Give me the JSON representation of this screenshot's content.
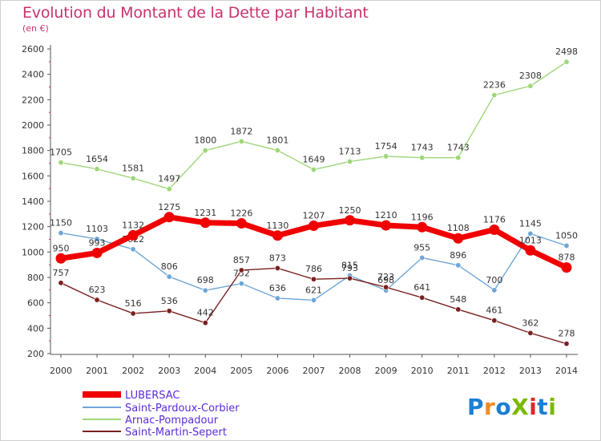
{
  "title": "Evolution du Montant de la Dette par Habitant",
  "unit": "(en €)",
  "logo": {
    "text": "ProXiti",
    "colors": [
      "#1a7fd4",
      "#f28a1e",
      "#1a7fd4",
      "#7ab800",
      "#d82a2a",
      "#1a7fd4",
      "#7ab800"
    ]
  },
  "chart_data": {
    "type": "line",
    "x": [
      "2000",
      "2001",
      "2002",
      "2003",
      "2004",
      "2005",
      "2006",
      "2007",
      "2008",
      "2009",
      "2010",
      "2011",
      "2012",
      "2013",
      "2014"
    ],
    "ylim": [
      200,
      2600
    ],
    "yticks": [
      200,
      400,
      600,
      800,
      1000,
      1200,
      1400,
      1600,
      1800,
      2000,
      2200,
      2400,
      2600
    ],
    "grid": false,
    "legend_position": "bottom-left",
    "series": [
      {
        "name": "LUBERSAC",
        "color": "#f00000",
        "values": [
          950,
          993,
          1132,
          1275,
          1231,
          1226,
          1130,
          1207,
          1250,
          1210,
          1196,
          1108,
          1176,
          1013,
          878
        ]
      },
      {
        "name": "Saint-Pardoux-Corbier",
        "color": "#6fa6d6",
        "values": [
          1150,
          1103,
          1022,
          806,
          698,
          752,
          636,
          621,
          815,
          698,
          955,
          896,
          700,
          1145,
          1050
        ]
      },
      {
        "name": "Arnac-Pompadour",
        "color": "#9ed67a",
        "values": [
          1705,
          1654,
          1581,
          1497,
          1800,
          1872,
          1801,
          1649,
          1713,
          1754,
          1743,
          1743,
          2236,
          2308,
          2498
        ]
      },
      {
        "name": "Saint-Martin-Sepert",
        "color": "#7a2020",
        "values": [
          757,
          623,
          516,
          536,
          442,
          857,
          873,
          786,
          793,
          723,
          641,
          548,
          461,
          362,
          278
        ]
      }
    ]
  }
}
